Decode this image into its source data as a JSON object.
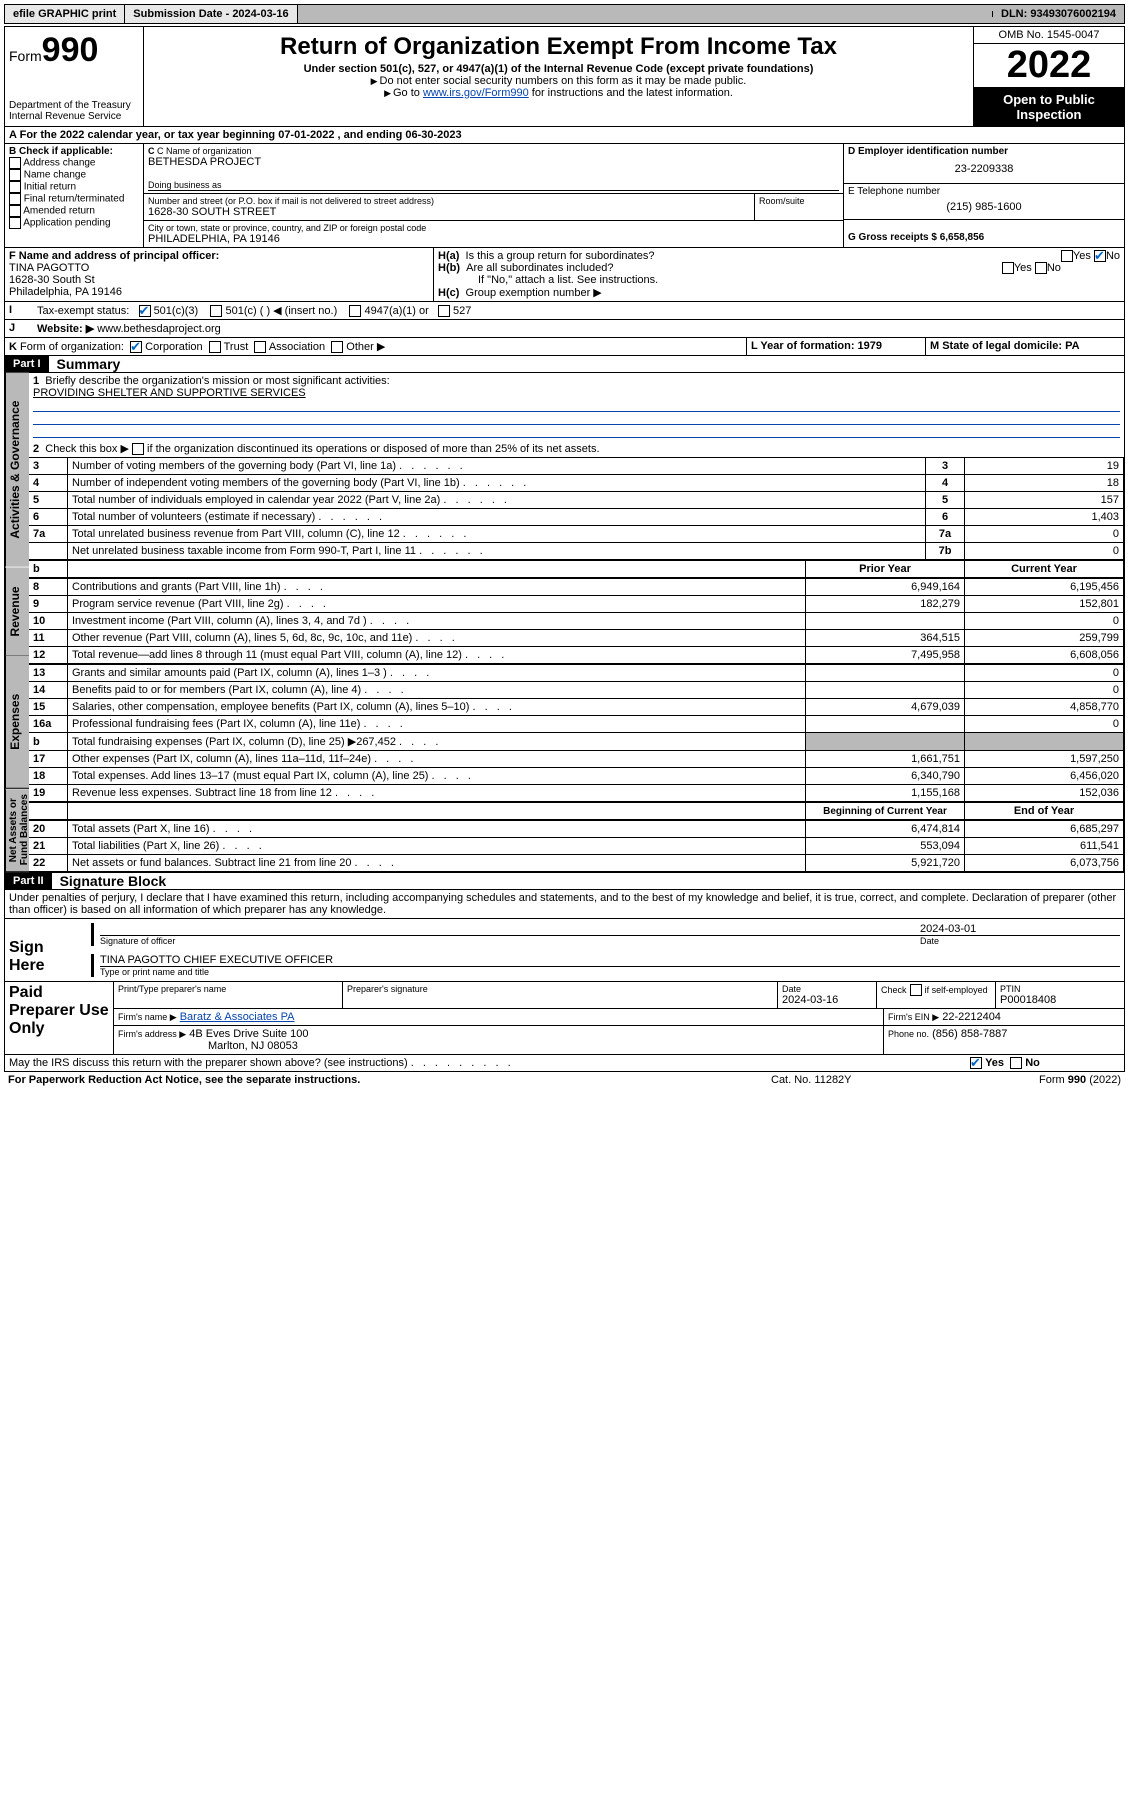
{
  "topbar": {
    "efile": "efile GRAPHIC print",
    "submission_label": "Submission Date - 2024-03-16",
    "dln_label": "DLN: 93493076002194"
  },
  "header": {
    "form_prefix": "Form",
    "form_number": "990",
    "dept": "Department of the Treasury",
    "irs": "Internal Revenue Service",
    "title": "Return of Organization Exempt From Income Tax",
    "subtitle": "Under section 501(c), 527, or 4947(a)(1) of the Internal Revenue Code (except private foundations)",
    "note1": "Do not enter social security numbers on this form as it may be made public.",
    "note2_pre": "Go to ",
    "note2_link": "www.irs.gov/Form990",
    "note2_post": " for instructions and the latest information.",
    "omb": "OMB No. 1545-0047",
    "year": "2022",
    "inspection": "Open to Public Inspection"
  },
  "period": {
    "line": "For the 2022 calendar year, or tax year beginning 07-01-2022     , and ending 06-30-2023"
  },
  "sectionB": {
    "label": "B Check if applicable:",
    "opts": [
      "Address change",
      "Name change",
      "Initial return",
      "Final return/terminated",
      "Amended return",
      "Application pending"
    ]
  },
  "sectionC": {
    "name_label": "C Name of organization",
    "name": "BETHESDA PROJECT",
    "dba_label": "Doing business as",
    "addr_label": "Number and street (or P.O. box if mail is not delivered to street address)",
    "room_label": "Room/suite",
    "addr": "1628-30 SOUTH STREET",
    "city_label": "City or town, state or province, country, and ZIP or foreign postal code",
    "city": "PHILADELPHIA, PA  19146"
  },
  "sectionD": {
    "label": "D Employer identification number",
    "value": "23-2209338"
  },
  "sectionE": {
    "label": "E Telephone number",
    "value": "(215) 985-1600"
  },
  "sectionG": {
    "label": "G Gross receipts $ 6,658,856"
  },
  "sectionF": {
    "label": "F Name and address of principal officer:",
    "name": "TINA PAGOTTO",
    "addr1": "1628-30 South St",
    "addr2": "Philadelphia, PA  19146"
  },
  "sectionH": {
    "a": "Is this a group return for subordinates?",
    "b": "Are all subordinates included?",
    "note": "If \"No,\" attach a list. See instructions.",
    "c": "Group exemption number ▶",
    "ha_label": "H(a)",
    "hb_label": "H(b)",
    "hc_label": "H(c)",
    "yes": "Yes",
    "no": "No"
  },
  "sectionI": {
    "label": "Tax-exempt status:",
    "opt1": "501(c)(3)",
    "opt2": "501(c) (  ) ◀ (insert no.)",
    "opt3": "4947(a)(1) or",
    "opt4": "527",
    "letter": "I"
  },
  "sectionJ": {
    "letter": "J",
    "label": "Website: ▶",
    "value": "www.bethesdaproject.org"
  },
  "sectionK": {
    "letter": "K",
    "label": "Form of organization:",
    "opts": [
      "Corporation",
      "Trust",
      "Association",
      "Other ▶"
    ]
  },
  "sectionL": {
    "label": "L Year of formation: 1979"
  },
  "sectionM": {
    "label": "M State of legal domicile: PA"
  },
  "part1": {
    "hdr": "Part I",
    "title": "Summary",
    "groups": [
      {
        "label": "Activities & Governance"
      },
      {
        "label": "Revenue"
      },
      {
        "label": "Expenses"
      },
      {
        "label": "Net Assets or Fund Balances"
      }
    ],
    "q1": "Briefly describe the organization's mission or most significant activities:",
    "q1v": "PROVIDING SHELTER AND SUPPORTIVE SERVICES",
    "q2": "Check this box ▶",
    "q2b": " if the organization discontinued its operations or disposed of more than 25% of its net assets.",
    "rows_gov": [
      {
        "n": "3",
        "t": "Number of voting members of the governing body (Part VI, line 1a)",
        "box": "3",
        "v": "19"
      },
      {
        "n": "4",
        "t": "Number of independent voting members of the governing body (Part VI, line 1b)",
        "box": "4",
        "v": "18"
      },
      {
        "n": "5",
        "t": "Total number of individuals employed in calendar year 2022 (Part V, line 2a)",
        "box": "5",
        "v": "157"
      },
      {
        "n": "6",
        "t": "Total number of volunteers (estimate if necessary)",
        "box": "6",
        "v": "1,403"
      },
      {
        "n": "7a",
        "t": "Total unrelated business revenue from Part VIII, column (C), line 12",
        "box": "7a",
        "v": "0"
      },
      {
        "n": "",
        "t": "Net unrelated business taxable income from Form 990-T, Part I, line 11",
        "box": "7b",
        "v": "0"
      }
    ],
    "col_hdr": {
      "b": "b",
      "prior": "Prior Year",
      "current": "Current Year"
    },
    "rows_rev": [
      {
        "n": "8",
        "t": "Contributions and grants (Part VIII, line 1h)",
        "p": "6,949,164",
        "c": "6,195,456"
      },
      {
        "n": "9",
        "t": "Program service revenue (Part VIII, line 2g)",
        "p": "182,279",
        "c": "152,801"
      },
      {
        "n": "10",
        "t": "Investment income (Part VIII, column (A), lines 3, 4, and 7d )",
        "p": "",
        "c": "0"
      },
      {
        "n": "11",
        "t": "Other revenue (Part VIII, column (A), lines 5, 6d, 8c, 9c, 10c, and 11e)",
        "p": "364,515",
        "c": "259,799"
      },
      {
        "n": "12",
        "t": "Total revenue—add lines 8 through 11 (must equal Part VIII, column (A), line 12)",
        "p": "7,495,958",
        "c": "6,608,056"
      }
    ],
    "rows_exp": [
      {
        "n": "13",
        "t": "Grants and similar amounts paid (Part IX, column (A), lines 1–3 )",
        "p": "",
        "c": "0"
      },
      {
        "n": "14",
        "t": "Benefits paid to or for members (Part IX, column (A), line 4)",
        "p": "",
        "c": "0"
      },
      {
        "n": "15",
        "t": "Salaries, other compensation, employee benefits (Part IX, column (A), lines 5–10)",
        "p": "4,679,039",
        "c": "4,858,770"
      },
      {
        "n": "16a",
        "t": "Professional fundraising fees (Part IX, column (A), line 11e)",
        "p": "",
        "c": "0"
      },
      {
        "n": "b",
        "t": "Total fundraising expenses (Part IX, column (D), line 25) ▶267,452",
        "p": "shade",
        "c": "shade"
      },
      {
        "n": "17",
        "t": "Other expenses (Part IX, column (A), lines 11a–11d, 11f–24e)",
        "p": "1,661,751",
        "c": "1,597,250"
      },
      {
        "n": "18",
        "t": "Total expenses. Add lines 13–17 (must equal Part IX, column (A), line 25)",
        "p": "6,340,790",
        "c": "6,456,020"
      },
      {
        "n": "19",
        "t": "Revenue less expenses. Subtract line 18 from line 12",
        "p": "1,155,168",
        "c": "152,036"
      }
    ],
    "col_hdr2": {
      "prior": "Beginning of Current Year",
      "current": "End of Year"
    },
    "rows_net": [
      {
        "n": "20",
        "t": "Total assets (Part X, line 16)",
        "p": "6,474,814",
        "c": "6,685,297"
      },
      {
        "n": "21",
        "t": "Total liabilities (Part X, line 26)",
        "p": "553,094",
        "c": "611,541"
      },
      {
        "n": "22",
        "t": "Net assets or fund balances. Subtract line 21 from line 20",
        "p": "5,921,720",
        "c": "6,073,756"
      }
    ]
  },
  "part2": {
    "hdr": "Part II",
    "title": "Signature Block",
    "decl": "Under penalties of perjury, I declare that I have examined this return, including accompanying schedules and statements, and to the best of my knowledge and belief, it is true, correct, and complete. Declaration of preparer (other than officer) is based on all information of which preparer has any knowledge.",
    "sign_here": "Sign Here",
    "sig_officer": "Signature of officer",
    "date_label": "Date",
    "sig_date": "2024-03-01",
    "officer_name": "TINA PAGOTTO  CHIEF EXECUTIVE OFFICER",
    "type_name": "Type or print name and title",
    "paid": "Paid Preparer Use Only",
    "prep_name_label": "Print/Type preparer's name",
    "prep_sig_label": "Preparer's signature",
    "prep_date_label": "Date",
    "prep_date": "2024-03-16",
    "check_label": "Check",
    "self_emp": "if self-employed",
    "ptin_label": "PTIN",
    "ptin": "P00018408",
    "firm_name_label": "Firm's name    ▶",
    "firm_name": "Baratz & Associates PA",
    "firm_ein_label": "Firm's EIN ▶",
    "firm_ein": "22-2212404",
    "firm_addr_label": "Firm's address ▶",
    "firm_addr1": "4B Eves Drive Suite 100",
    "firm_addr2": "Marlton, NJ  08053",
    "phone_label": "Phone no.",
    "phone": "(856) 858-7887",
    "discuss": "May the IRS discuss this return with the preparer shown above? (see instructions)",
    "paperwork": "For Paperwork Reduction Act Notice, see the separate instructions.",
    "cat": "Cat. No. 11282Y",
    "form_footer": "Form 990 (2022)"
  }
}
